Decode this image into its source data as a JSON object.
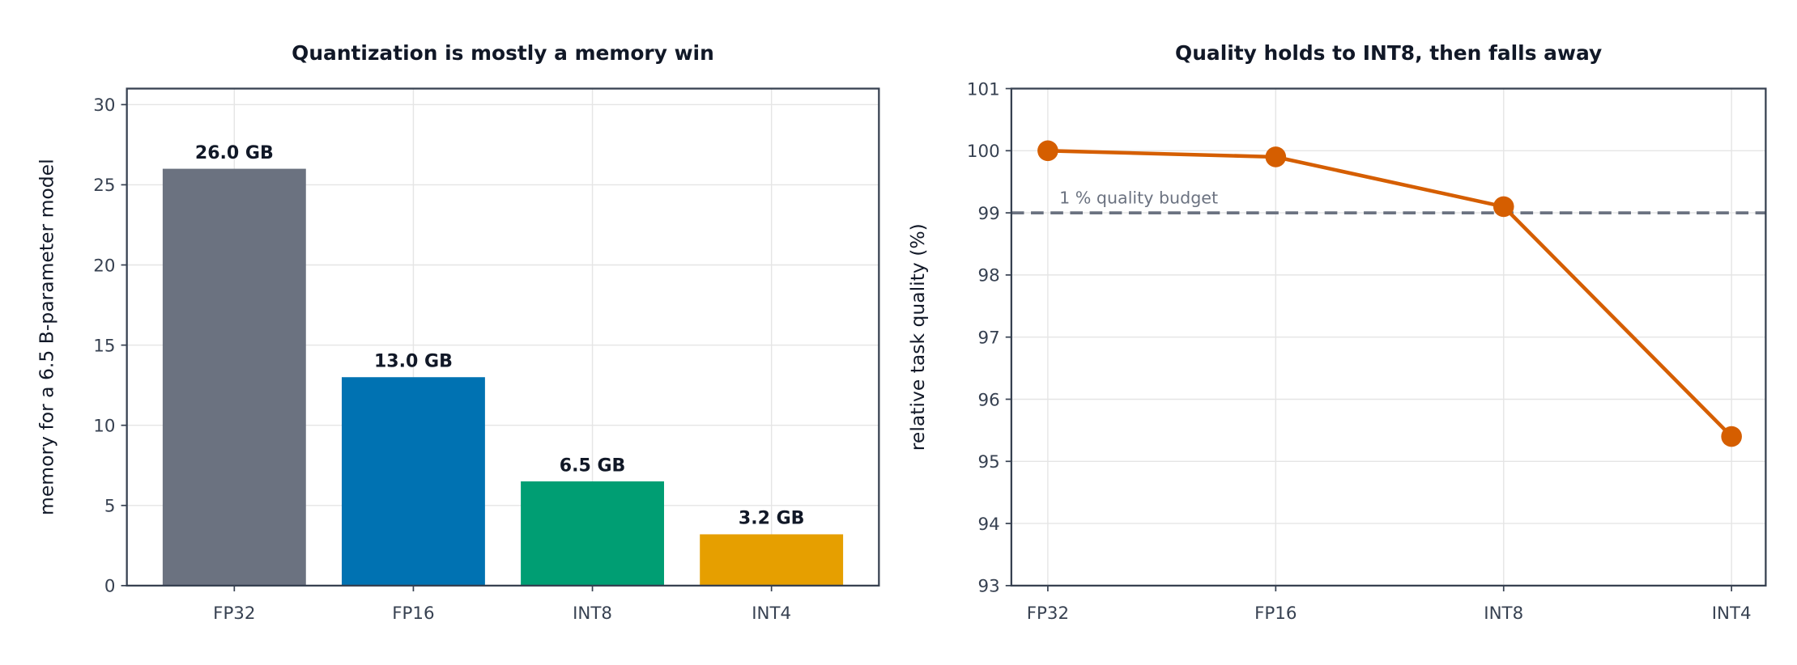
{
  "chart_data": [
    {
      "type": "bar",
      "title": "Quantization is mostly a memory win",
      "y_label": "memory for a 6.5 B-parameter model",
      "categories": [
        "FP32",
        "FP16",
        "INT8",
        "INT4"
      ],
      "values": [
        26.0,
        13.0,
        6.5,
        3.2
      ],
      "value_labels": [
        "26.0 GB",
        "13.0 GB",
        "6.5 GB",
        "3.2 GB"
      ],
      "colors": [
        "#6b7280",
        "#0072b2",
        "#009e73",
        "#e69f00"
      ],
      "ylim": [
        0,
        31
      ],
      "yticks": [
        0,
        5,
        10,
        15,
        20,
        25,
        30
      ],
      "grid": true
    },
    {
      "type": "line",
      "title": "Quality holds to INT8, then falls away",
      "y_label": "relative task quality (%)",
      "categories": [
        "FP32",
        "FP16",
        "INT8",
        "INT4"
      ],
      "values": [
        100.0,
        99.9,
        99.1,
        95.4
      ],
      "color": "#d55e00",
      "reference_line": {
        "value": 99,
        "label": "1 % quality budget",
        "color": "#6b7280"
      },
      "ylim": [
        93,
        101
      ],
      "yticks": [
        93,
        94,
        95,
        96,
        97,
        98,
        99,
        100,
        101
      ],
      "grid": true
    }
  ]
}
